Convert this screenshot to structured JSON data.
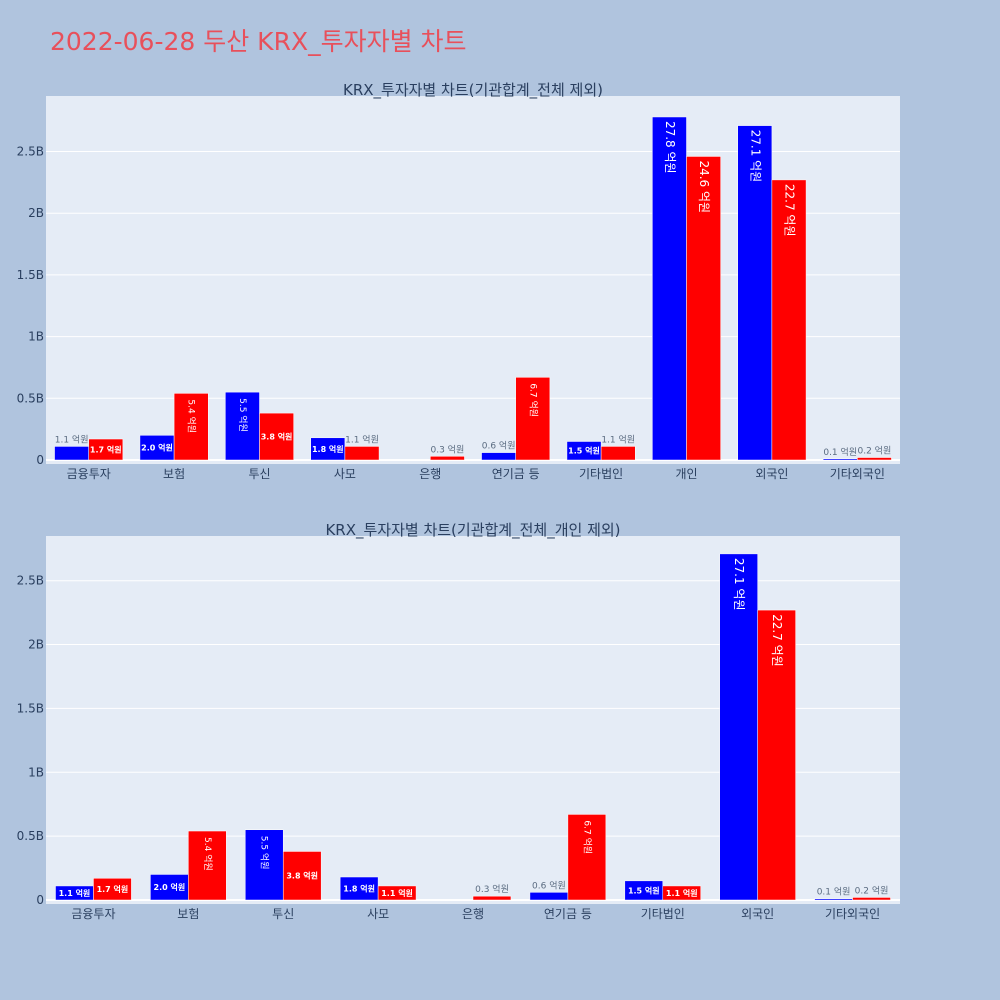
{
  "title": "2022-06-28 두산 KRX_투자자별 차트",
  "chart_data": [
    {
      "type": "bar",
      "title": "KRX_투자자별 차트(기관합계_전체 제외)",
      "categories": [
        "금융투자",
        "보험",
        "투신",
        "사모",
        "은행",
        "연기금 등",
        "기타법인",
        "개인",
        "외국인",
        "기타외국인"
      ],
      "ytick_labels": [
        "0",
        "0.5B",
        "1B",
        "1.5B",
        "2B",
        "2.5B"
      ],
      "ytick_values": [
        0,
        500000000,
        1000000000,
        1500000000,
        2000000000,
        2500000000
      ],
      "ylim": [
        0,
        2950000000
      ],
      "series": [
        {
          "color": "#0000ff",
          "values": [
            110000000,
            200000000,
            550000000,
            180000000,
            0,
            60000000,
            150000000,
            2780000000,
            2710000000,
            10000000
          ],
          "labels": [
            "1.1 억원",
            "2.0 억원",
            "5.5 억원",
            "1.8 억원",
            "",
            "0.6 억원",
            "1.5 억원",
            "27.8 억원",
            "27.1 억원",
            "0.1 억원"
          ]
        },
        {
          "color": "#ff0000",
          "values": [
            170000000,
            540000000,
            380000000,
            110000000,
            30000000,
            670000000,
            110000000,
            2460000000,
            2270000000,
            20000000
          ],
          "labels": [
            "1.7 억원",
            "5.4 억원",
            "3.8 억원",
            "1.1 억원",
            "0.3 억원",
            "6.7 억원",
            "1.1 억원",
            "24.6 억원",
            "22.7 억원",
            "0.2 억원"
          ]
        }
      ]
    },
    {
      "type": "bar",
      "title": "KRX_투자자별 차트(기관합계_전체_개인 제외)",
      "categories": [
        "금융투자",
        "보험",
        "투신",
        "사모",
        "은행",
        "연기금 등",
        "기타법인",
        "외국인",
        "기타외국인"
      ],
      "ytick_labels": [
        "0",
        "0.5B",
        "1B",
        "1.5B",
        "2B",
        "2.5B"
      ],
      "ytick_values": [
        0,
        500000000,
        1000000000,
        1500000000,
        2000000000,
        2500000000
      ],
      "ylim": [
        0,
        2850000000
      ],
      "series": [
        {
          "color": "#0000ff",
          "values": [
            110000000,
            200000000,
            550000000,
            180000000,
            0,
            60000000,
            150000000,
            2710000000,
            10000000
          ],
          "labels": [
            "1.1 억원",
            "2.0 억원",
            "5.5 억원",
            "1.8 억원",
            "",
            "0.6 억원",
            "1.5 억원",
            "27.1 억원",
            "0.1 억원"
          ]
        },
        {
          "color": "#ff0000",
          "values": [
            170000000,
            540000000,
            380000000,
            110000000,
            30000000,
            670000000,
            110000000,
            2270000000,
            20000000
          ],
          "labels": [
            "1.7 억원",
            "5.4 억원",
            "3.8 억원",
            "1.1 억원",
            "0.3 억원",
            "6.7 억원",
            "1.1 억원",
            "22.7 억원",
            "0.2 억원"
          ]
        }
      ]
    }
  ]
}
